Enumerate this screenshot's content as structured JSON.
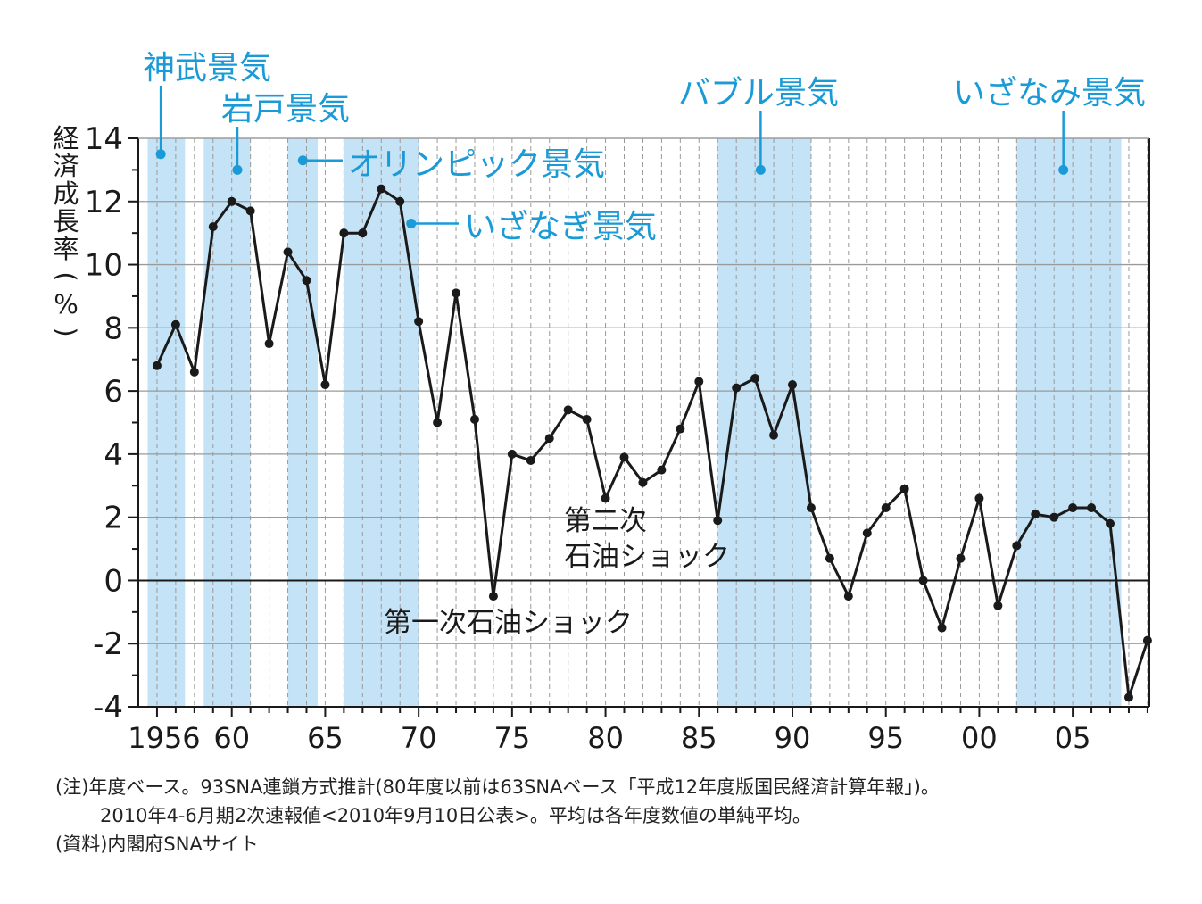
{
  "chart_data": {
    "type": "line",
    "ylabel": "経済成長率(%)",
    "ylim": [
      -4,
      14
    ],
    "yticks": [
      -4,
      -2,
      0,
      2,
      4,
      6,
      8,
      10,
      12,
      14
    ],
    "xticks": [
      {
        "year": 1956,
        "label": "1956"
      },
      {
        "year": 1960,
        "label": "60"
      },
      {
        "year": 1965,
        "label": "65"
      },
      {
        "year": 1970,
        "label": "70"
      },
      {
        "year": 1975,
        "label": "75"
      },
      {
        "year": 1980,
        "label": "80"
      },
      {
        "year": 1985,
        "label": "85"
      },
      {
        "year": 1990,
        "label": "90"
      },
      {
        "year": 1995,
        "label": "95"
      },
      {
        "year": 2000,
        "label": "00"
      },
      {
        "year": 2005,
        "label": "05"
      }
    ],
    "x": [
      1956,
      1957,
      1958,
      1959,
      1960,
      1961,
      1962,
      1963,
      1964,
      1965,
      1966,
      1967,
      1968,
      1969,
      1970,
      1971,
      1972,
      1973,
      1974,
      1975,
      1976,
      1977,
      1978,
      1979,
      1980,
      1981,
      1982,
      1983,
      1984,
      1985,
      1986,
      1987,
      1988,
      1989,
      1990,
      1991,
      1992,
      1993,
      1994,
      1995,
      1996,
      1997,
      1998,
      1999,
      2000,
      2001,
      2002,
      2003,
      2004,
      2005,
      2006,
      2007,
      2008,
      2009
    ],
    "series": [
      {
        "values": [
          6.8,
          8.1,
          6.6,
          11.2,
          12.0,
          11.7,
          7.5,
          10.4,
          9.5,
          6.2,
          11.0,
          11.0,
          12.4,
          12.0,
          8.2,
          5.0,
          9.1,
          5.1,
          -0.5,
          4.0,
          3.8,
          4.5,
          5.4,
          5.1,
          2.6,
          3.9,
          3.1,
          3.5,
          4.8,
          6.3,
          1.9,
          6.1,
          6.4,
          4.6,
          6.2,
          2.3,
          0.7,
          -0.5,
          1.5,
          2.3,
          2.9,
          0.0,
          -1.5,
          0.7,
          2.6,
          -0.8,
          1.1,
          2.1,
          2.0,
          2.3,
          2.3,
          1.8,
          -3.7,
          -1.9
        ]
      }
    ],
    "booms": [
      {
        "name": "神武景気",
        "start": 1955.5,
        "end": 1957.5
      },
      {
        "name": "岩戸景気",
        "start": 1958.5,
        "end": 1961.0
      },
      {
        "name": "オリンピック景気",
        "start": 1963.0,
        "end": 1964.6
      },
      {
        "name": "いざなぎ景気",
        "start": 1966.0,
        "end": 1970.0
      },
      {
        "name": "バブル景気",
        "start": 1986.0,
        "end": 1991.0
      },
      {
        "name": "いざなみ景気",
        "start": 2002.0,
        "end": 2007.6
      }
    ],
    "annotations": [
      {
        "text_lines": [
          "第一次石油ショック"
        ]
      },
      {
        "text_lines": [
          "第二次",
          "石油ショック"
        ]
      }
    ],
    "grid": true
  },
  "notes": {
    "line1": "(注)年度ベース。93SNA連鎖方式推計(80年度以前は63SNAベース「平成12年度版国民経済計算年報」)。",
    "line2": "2010年4-6月期2次速報値<2010年9月10日公表>。平均は各年度数値の単純平均。",
    "line3": "(資料)内閣府SNAサイト"
  },
  "colors": {
    "boom_band": "#c5e3f6",
    "boom_label": "#1a9bd7",
    "line": "#1a1a1a",
    "grid": "#9a9a9a"
  }
}
